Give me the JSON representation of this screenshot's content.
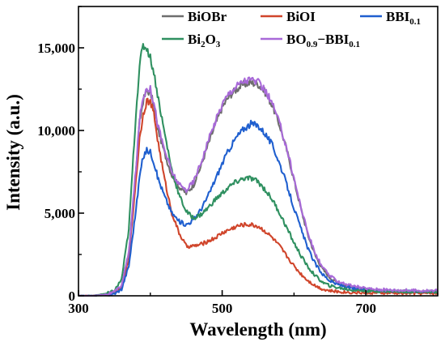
{
  "chart_data": {
    "type": "line",
    "xlabel": "Wavelength (nm)",
    "ylabel": "Intensity (a.u.)",
    "xlim": [
      300,
      800
    ],
    "ylim": [
      0,
      17500
    ],
    "xticks": [
      300,
      500,
      700
    ],
    "xtick_labels": [
      "300",
      "500",
      "700"
    ],
    "yticks": [
      0,
      5000,
      10000,
      15000
    ],
    "ytick_labels": [
      "0",
      "5,000",
      "10,000",
      "15,000"
    ],
    "grid": false,
    "legend_position": "top",
    "series": [
      {
        "name": "BiOBr",
        "name_main": "BiOBr",
        "name_parts": [
          [
            "BiOBr",
            false
          ]
        ],
        "color": "#6e6e6e",
        "x": [
          300,
          320,
          340,
          350,
          360,
          370,
          380,
          385,
          390,
          395,
          400,
          405,
          410,
          420,
          430,
          440,
          450,
          460,
          470,
          480,
          490,
          500,
          510,
          520,
          530,
          540,
          550,
          560,
          570,
          580,
          590,
          600,
          610,
          620,
          630,
          640,
          650,
          660,
          680,
          700,
          720,
          740,
          760,
          780,
          800
        ],
        "y": [
          0,
          0,
          100,
          200,
          600,
          2500,
          7500,
          10500,
          11800,
          12400,
          12300,
          11500,
          10200,
          8600,
          7300,
          6600,
          6200,
          6700,
          7800,
          9100,
          10300,
          11400,
          12100,
          12500,
          12800,
          12900,
          12800,
          12300,
          11500,
          10300,
          8800,
          7000,
          5200,
          3600,
          2400,
          1600,
          1100,
          800,
          500,
          350,
          300,
          280,
          260,
          250,
          250
        ]
      },
      {
        "name": "BiOI",
        "name_main": "BiOI",
        "name_parts": [
          [
            "BiOI",
            false
          ]
        ],
        "color": "#d0452b",
        "x": [
          300,
          320,
          340,
          350,
          360,
          370,
          380,
          385,
          390,
          395,
          400,
          405,
          410,
          420,
          430,
          440,
          450,
          460,
          470,
          480,
          490,
          500,
          510,
          520,
          530,
          540,
          550,
          560,
          570,
          580,
          590,
          600,
          610,
          620,
          630,
          640,
          650,
          660,
          680,
          700,
          720,
          740,
          760,
          780,
          800
        ],
        "y": [
          0,
          0,
          80,
          150,
          500,
          2200,
          7000,
          9500,
          11000,
          11800,
          11700,
          11000,
          9500,
          7000,
          5000,
          3800,
          3000,
          3000,
          3100,
          3300,
          3500,
          3800,
          4000,
          4200,
          4300,
          4300,
          4200,
          3900,
          3500,
          3000,
          2400,
          1800,
          1300,
          900,
          600,
          400,
          300,
          250,
          200,
          180,
          170,
          160,
          160,
          150,
          150
        ]
      },
      {
        "name": "BBI0.1",
        "name_main": "BBI",
        "name_parts": [
          [
            "BBI",
            false
          ],
          [
            "0.1",
            true
          ]
        ],
        "color": "#1f5fcf",
        "x": [
          300,
          320,
          340,
          350,
          360,
          370,
          380,
          385,
          390,
          395,
          400,
          405,
          410,
          420,
          430,
          440,
          450,
          460,
          470,
          480,
          490,
          500,
          510,
          520,
          530,
          540,
          550,
          560,
          570,
          580,
          590,
          600,
          610,
          620,
          630,
          640,
          650,
          660,
          680,
          700,
          720,
          740,
          760,
          780,
          800
        ],
        "y": [
          0,
          0,
          60,
          120,
          400,
          1800,
          5200,
          7200,
          8400,
          8800,
          8700,
          8100,
          7200,
          6000,
          5000,
          4500,
          4300,
          4600,
          5200,
          6000,
          7000,
          8000,
          8900,
          9600,
          10100,
          10400,
          10300,
          9800,
          9100,
          8000,
          6700,
          5300,
          4000,
          2800,
          1900,
          1300,
          900,
          700,
          450,
          350,
          320,
          300,
          280,
          270,
          260
        ]
      },
      {
        "name": "Bi2O3",
        "name_main": "Bi2O3",
        "name_parts": [
          [
            "Bi",
            false
          ],
          [
            "2",
            true
          ],
          [
            "O",
            false
          ],
          [
            "3",
            true
          ]
        ],
        "color": "#2f9060",
        "x": [
          300,
          320,
          340,
          350,
          360,
          370,
          380,
          385,
          390,
          395,
          400,
          405,
          410,
          420,
          430,
          440,
          450,
          460,
          470,
          480,
          490,
          500,
          510,
          520,
          530,
          540,
          550,
          560,
          570,
          580,
          590,
          600,
          610,
          620,
          630,
          640,
          650,
          660,
          680,
          700,
          720,
          740,
          760,
          780,
          800
        ],
        "y": [
          0,
          0,
          150,
          300,
          1000,
          4000,
          11000,
          14000,
          15100,
          15000,
          14400,
          13500,
          12200,
          9800,
          7600,
          6100,
          5100,
          4700,
          4900,
          5300,
          5800,
          6200,
          6600,
          6900,
          7100,
          7100,
          6900,
          6400,
          5800,
          5000,
          4100,
          3200,
          2400,
          1700,
          1200,
          800,
          600,
          500,
          350,
          300,
          280,
          270,
          260,
          250,
          250
        ]
      },
      {
        "name": "BO0.9−BBI0.1",
        "name_main": "BO0.9−BBI0.1",
        "name_parts": [
          [
            "BO",
            false
          ],
          [
            "0.9",
            true
          ],
          [
            "−BBI",
            false
          ],
          [
            "0.1",
            true
          ]
        ],
        "color": "#a869d8",
        "x": [
          300,
          320,
          340,
          350,
          360,
          370,
          380,
          385,
          390,
          395,
          400,
          405,
          410,
          420,
          430,
          440,
          450,
          460,
          470,
          480,
          490,
          500,
          510,
          520,
          530,
          540,
          550,
          560,
          570,
          580,
          590,
          600,
          610,
          620,
          630,
          640,
          650,
          660,
          680,
          700,
          720,
          740,
          760,
          780,
          800
        ],
        "y": [
          0,
          0,
          100,
          220,
          650,
          2600,
          7700,
          10700,
          12000,
          12600,
          12500,
          11700,
          10400,
          8800,
          7500,
          6700,
          6400,
          6900,
          8000,
          9300,
          10500,
          11600,
          12300,
          12700,
          13000,
          13100,
          12900,
          12400,
          11600,
          10400,
          8900,
          7100,
          5300,
          3700,
          2500,
          1700,
          1200,
          900,
          600,
          450,
          380,
          350,
          330,
          320,
          310
        ]
      }
    ]
  }
}
